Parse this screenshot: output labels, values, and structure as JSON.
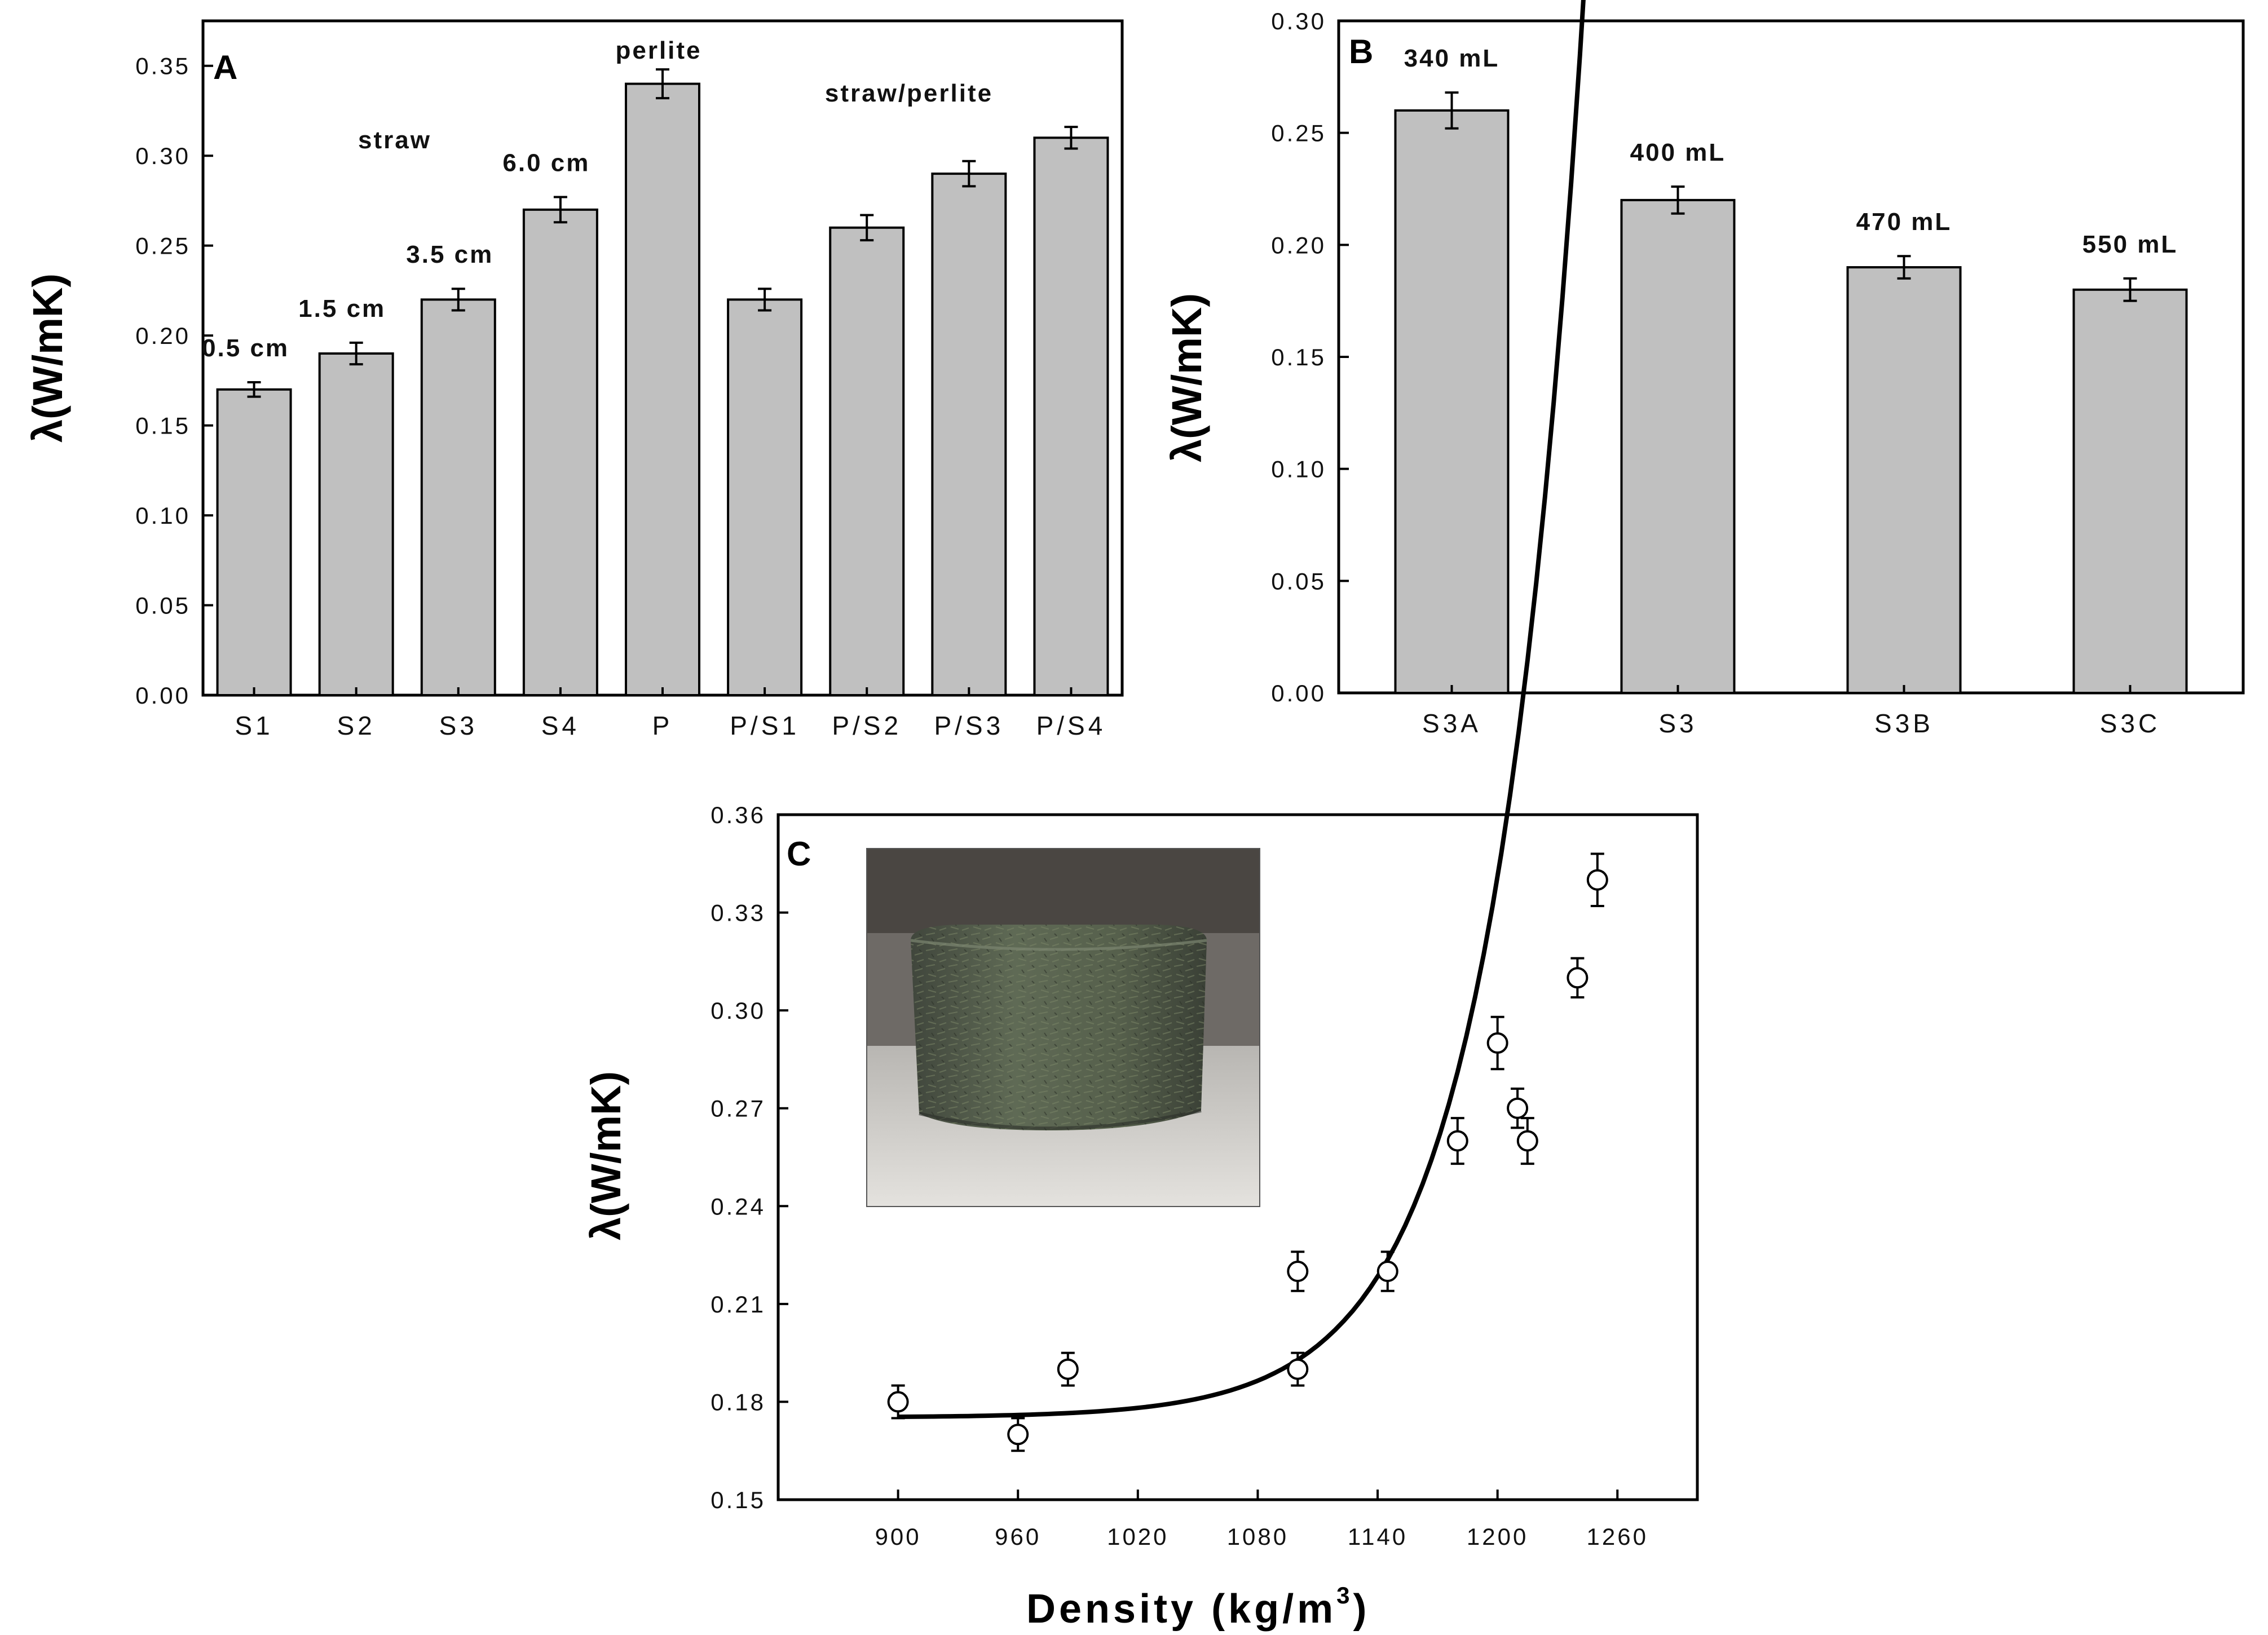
{
  "chart_data": [
    {
      "type": "bar",
      "panel_label": "A",
      "ylabel": "λ(W/mK)",
      "ylim": [
        0,
        0.375
      ],
      "yticks": [
        "0.00",
        "0.05",
        "0.10",
        "0.15",
        "0.20",
        "0.25",
        "0.30",
        "0.35"
      ],
      "categories": [
        "S1",
        "S2",
        "S3",
        "S4",
        "P",
        "P/S1",
        "P/S2",
        "P/S3",
        "P/S4"
      ],
      "values": [
        0.17,
        0.19,
        0.22,
        0.27,
        0.34,
        0.22,
        0.26,
        0.29,
        0.31
      ],
      "errors": [
        0.004,
        0.006,
        0.006,
        0.007,
        0.008,
        0.006,
        0.007,
        0.007,
        0.006
      ],
      "bar_labels": [
        "0.5 cm",
        "1.5 cm",
        "3.5 cm",
        "6.0 cm",
        "",
        "",
        "",
        "",
        ""
      ],
      "group_labels": [
        "straw",
        "perlite",
        "straw/perlite"
      ]
    },
    {
      "type": "bar",
      "panel_label": "B",
      "ylabel": "λ(W/mK)",
      "ylim": [
        0,
        0.3
      ],
      "yticks": [
        "0.00",
        "0.05",
        "0.10",
        "0.15",
        "0.20",
        "0.25",
        "0.30"
      ],
      "categories": [
        "S3A",
        "S3",
        "S3B",
        "S3C"
      ],
      "values": [
        0.26,
        0.22,
        0.19,
        0.18
      ],
      "errors": [
        0.008,
        0.006,
        0.005,
        0.005
      ],
      "bar_labels": [
        "340 mL",
        "400 mL",
        "470 mL",
        "550 mL"
      ]
    },
    {
      "type": "scatter",
      "panel_label": "C",
      "ylabel": "λ(W/mK)",
      "xlabel": "Density (kg/m",
      "xlabel_sup": "3",
      "xlabel_end": ")",
      "xlim": [
        840,
        1300
      ],
      "ylim": [
        0.15,
        0.36
      ],
      "xticks": [
        "900",
        "960",
        "1020",
        "1080",
        "1140",
        "1200",
        "1260"
      ],
      "yticks": [
        "0.15",
        "0.18",
        "0.21",
        "0.24",
        "0.27",
        "0.30",
        "0.33",
        "0.36"
      ],
      "points": [
        {
          "x": 900,
          "y": 0.18,
          "err": 0.005
        },
        {
          "x": 960,
          "y": 0.17,
          "err": 0.005
        },
        {
          "x": 985,
          "y": 0.19,
          "err": 0.005
        },
        {
          "x": 1100,
          "y": 0.22,
          "err": 0.006
        },
        {
          "x": 1100,
          "y": 0.19,
          "err": 0.005
        },
        {
          "x": 1145,
          "y": 0.22,
          "err": 0.006
        },
        {
          "x": 1180,
          "y": 0.26,
          "err": 0.007
        },
        {
          "x": 1200,
          "y": 0.29,
          "err": 0.008
        },
        {
          "x": 1210,
          "y": 0.27,
          "err": 0.006
        },
        {
          "x": 1215,
          "y": 0.26,
          "err": 0.007
        },
        {
          "x": 1240,
          "y": 0.31,
          "err": 0.006
        },
        {
          "x": 1250,
          "y": 0.34,
          "err": 0.008
        }
      ],
      "fit": {
        "type": "exponential",
        "y0": 0.1752,
        "a": 0.0002,
        "b": 0.0224,
        "x_from": 900,
        "x_to": 1250
      },
      "inset": "photo of cylindrical straw composite sample"
    }
  ]
}
